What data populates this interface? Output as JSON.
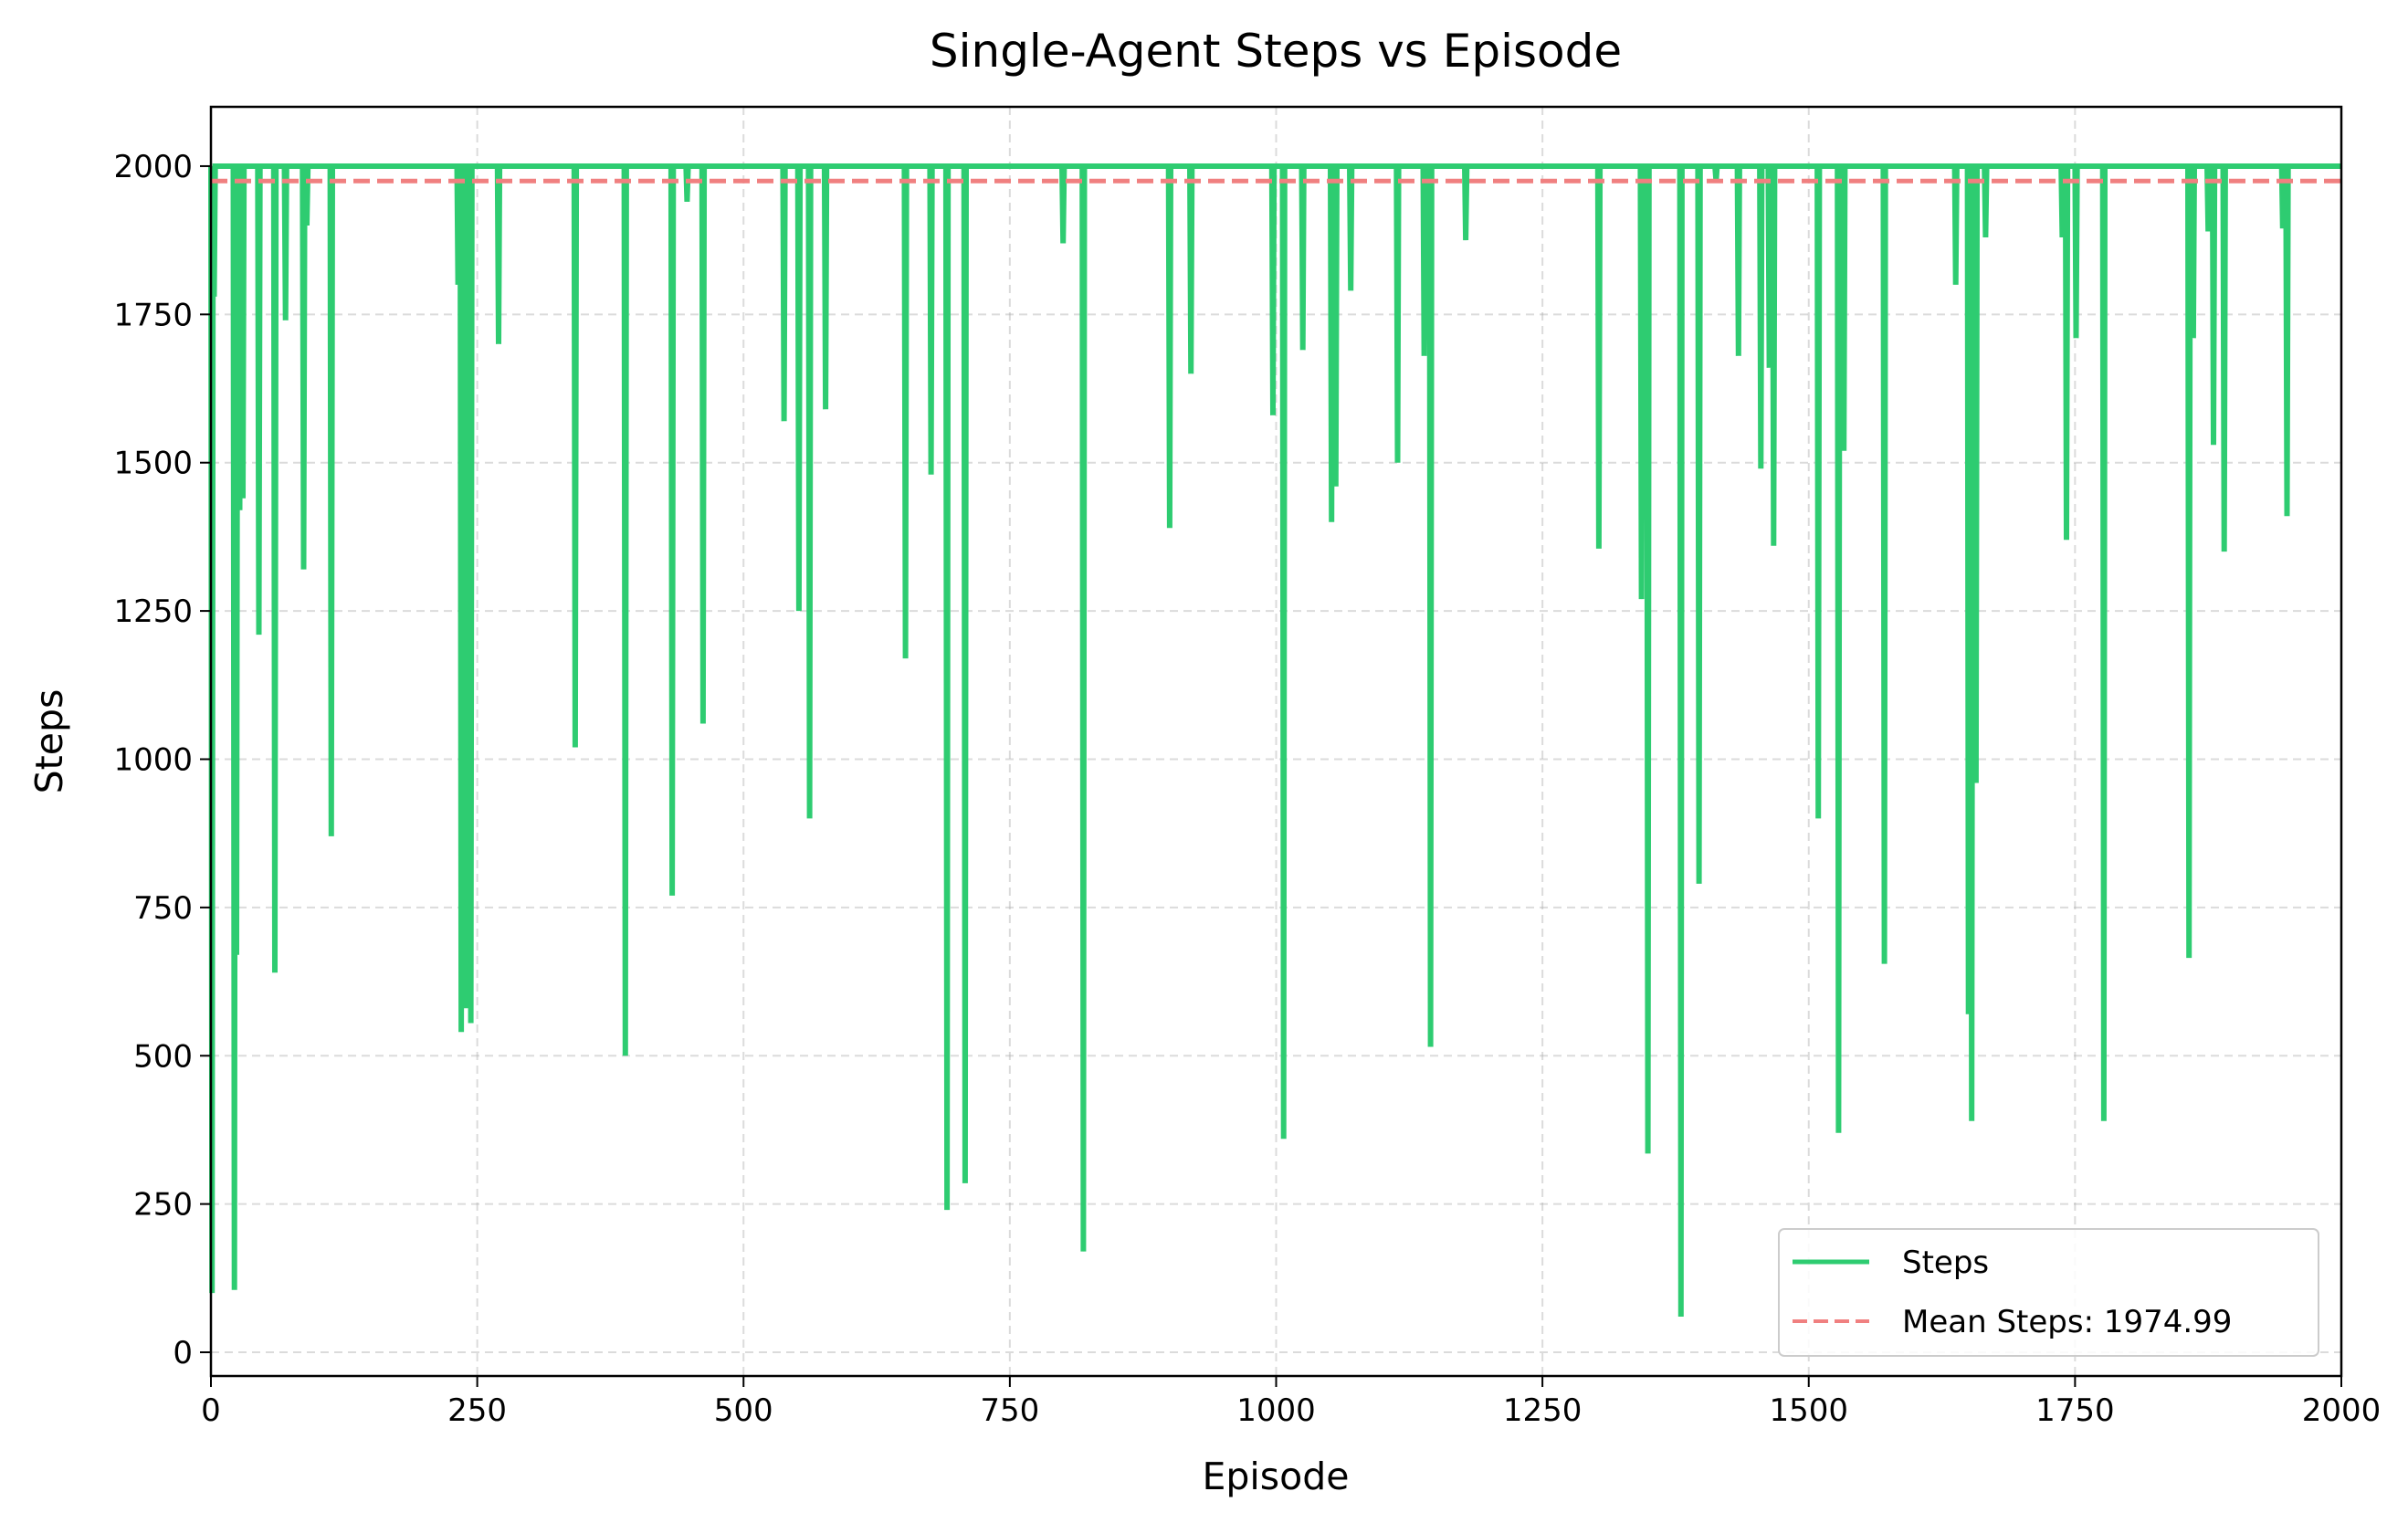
{
  "chart_data": {
    "type": "line",
    "title": "Single-Agent Steps vs Episode",
    "xlabel": "Episode",
    "ylabel": "Steps",
    "xlim": [
      0,
      2000
    ],
    "ylim": [
      -40,
      2100
    ],
    "xticks": [
      0,
      250,
      500,
      750,
      1000,
      1250,
      1500,
      1750,
      2000
    ],
    "yticks": [
      0,
      250,
      500,
      750,
      1000,
      1250,
      1500,
      1750,
      2000
    ],
    "grid": true,
    "legend_position": "lower-right",
    "baseline": 2000,
    "series": [
      {
        "name": "Steps",
        "color": "#2ecc71",
        "style": "solid",
        "dips": [
          [
            1,
            100
          ],
          [
            3,
            1780
          ],
          [
            22,
            105
          ],
          [
            24,
            670
          ],
          [
            27,
            1420
          ],
          [
            30,
            1440
          ],
          [
            45,
            1210
          ],
          [
            60,
            640
          ],
          [
            70,
            1740
          ],
          [
            87,
            1320
          ],
          [
            90,
            1900
          ],
          [
            113,
            870
          ],
          [
            232,
            1800
          ],
          [
            235,
            540
          ],
          [
            240,
            580
          ],
          [
            244,
            555
          ],
          [
            270,
            1700
          ],
          [
            342,
            1020
          ],
          [
            389,
            500
          ],
          [
            433,
            770
          ],
          [
            447,
            1940
          ],
          [
            462,
            1060
          ],
          [
            538,
            1570
          ],
          [
            552,
            1250
          ],
          [
            562,
            900
          ],
          [
            577,
            1590
          ],
          [
            652,
            1170
          ],
          [
            676,
            1480
          ],
          [
            691,
            240
          ],
          [
            708,
            285
          ],
          [
            800,
            1870
          ],
          [
            819,
            170
          ],
          [
            900,
            1390
          ],
          [
            920,
            1650
          ],
          [
            997,
            1580
          ],
          [
            1007,
            360
          ],
          [
            1025,
            1690
          ],
          [
            1052,
            1400
          ],
          [
            1056,
            1460
          ],
          [
            1070,
            1790
          ],
          [
            1114,
            1500
          ],
          [
            1139,
            1680
          ],
          [
            1145,
            515
          ],
          [
            1178,
            1875
          ],
          [
            1303,
            1355
          ],
          [
            1343,
            1270
          ],
          [
            1349,
            335
          ],
          [
            1380,
            60
          ],
          [
            1397,
            790
          ],
          [
            1413,
            1975
          ],
          [
            1434,
            1680
          ],
          [
            1455,
            1490
          ],
          [
            1463,
            1660
          ],
          [
            1467,
            1360
          ],
          [
            1509,
            900
          ],
          [
            1528,
            370
          ],
          [
            1533,
            1520
          ],
          [
            1571,
            655
          ],
          [
            1638,
            1800
          ],
          [
            1650,
            570
          ],
          [
            1653,
            390
          ],
          [
            1657,
            960
          ],
          [
            1666,
            1880
          ],
          [
            1738,
            1880
          ],
          [
            1742,
            1370
          ],
          [
            1751,
            1710
          ],
          [
            1777,
            390
          ],
          [
            1857,
            665
          ],
          [
            1861,
            1710
          ],
          [
            1875,
            1890
          ],
          [
            1880,
            1530
          ],
          [
            1890,
            1350
          ],
          [
            1945,
            1895
          ],
          [
            1949,
            1410
          ]
        ]
      },
      {
        "name": "Mean Steps: 1974.99",
        "color": "#f08080",
        "style": "dashed",
        "value": 1974.99
      }
    ]
  }
}
